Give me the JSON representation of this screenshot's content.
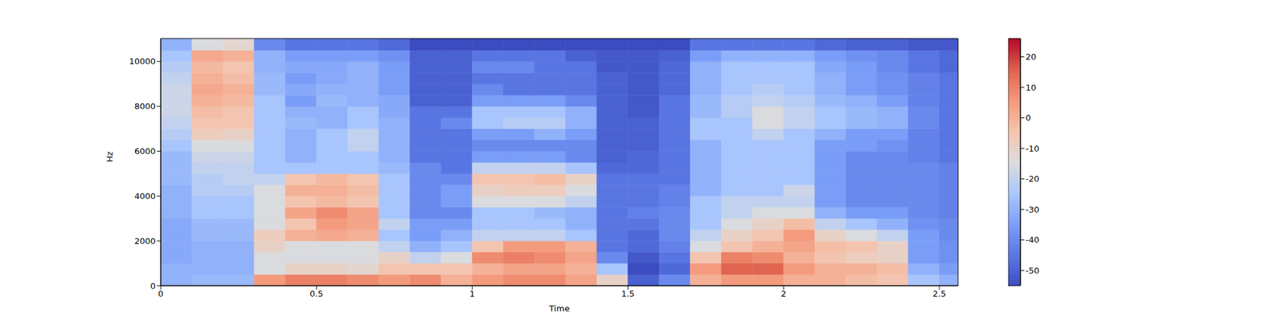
{
  "chart_data": {
    "type": "heatmap",
    "xlabel": "Time",
    "ylabel": "Hz",
    "xlim": [
      0,
      2.56
    ],
    "xticks": [
      0,
      0.5,
      1,
      1.5,
      2,
      2.5
    ],
    "ylim": [
      0,
      11025
    ],
    "yticks": [
      0,
      2000,
      4000,
      6000,
      8000,
      10000
    ],
    "x_bins": [
      0,
      0.1,
      0.2,
      0.3,
      0.4,
      0.5,
      0.6,
      0.7,
      0.8,
      0.9,
      1.0,
      1.1,
      1.2,
      1.3,
      1.4,
      1.5,
      1.6,
      1.7,
      1.8,
      1.9,
      2.0,
      2.1,
      2.2,
      2.3,
      2.4,
      2.5,
      2.56
    ],
    "y_bins": [
      0,
      500,
      1000,
      1500,
      2000,
      2500,
      3000,
      3500,
      4000,
      4500,
      5000,
      5500,
      6000,
      6500,
      7000,
      7500,
      8000,
      8500,
      9000,
      9500,
      10000,
      10500,
      11025
    ],
    "cells": [
      [
        -30,
        -30,
        -32,
        -32,
        -32,
        -32,
        -30,
        -30,
        -30,
        -28,
        -28,
        -28,
        -25,
        -22,
        -20,
        -18,
        -18,
        -18,
        -20,
        -22,
        -25,
        -30
      ],
      [
        -28,
        -30,
        -30,
        -30,
        -28,
        -28,
        -25,
        -25,
        -22,
        -22,
        -20,
        -18,
        -15,
        -8,
        -5,
        -3,
        0,
        2,
        0,
        -2,
        2,
        -15
      ],
      [
        -28,
        -30,
        -30,
        -30,
        -28,
        -28,
        -25,
        -25,
        -22,
        -20,
        -20,
        -18,
        -15,
        -10,
        -5,
        -5,
        -2,
        0,
        -3,
        -5,
        0,
        -12
      ],
      [
        5,
        -15,
        -15,
        -10,
        -8,
        -15,
        -15,
        -15,
        -15,
        -20,
        -25,
        -25,
        -25,
        -25,
        -25,
        -25,
        -25,
        -28,
        -28,
        -30,
        -30,
        -40
      ],
      [
        10,
        -10,
        -15,
        -15,
        0,
        -5,
        3,
        -5,
        0,
        -5,
        -25,
        -30,
        -30,
        -30,
        -28,
        -30,
        -35,
        -32,
        -35,
        -32,
        -35,
        -45
      ],
      [
        10,
        -10,
        -15,
        -15,
        2,
        5,
        8,
        -2,
        0,
        -2,
        -25,
        -25,
        -25,
        -25,
        -30,
        -30,
        -28,
        -30,
        -32,
        -32,
        -35,
        -45
      ],
      [
        8,
        -12,
        -15,
        -15,
        0,
        3,
        3,
        -5,
        -3,
        -5,
        -25,
        -25,
        -20,
        -20,
        -25,
        -25,
        -30,
        -30,
        -30,
        -30,
        -35,
        -45
      ],
      [
        5,
        -5,
        -10,
        -20,
        -25,
        -20,
        -25,
        -25,
        -25,
        -25,
        -28,
        -30,
        -30,
        -30,
        -30,
        -32,
        -32,
        -35,
        -35,
        -35,
        -38,
        -48
      ],
      [
        8,
        -5,
        -20,
        -30,
        -35,
        -35,
        -40,
        -40,
        -40,
        -40,
        -40,
        -45,
        -45,
        -45,
        -45,
        -45,
        -50,
        -50,
        -50,
        -50,
        -50,
        -55
      ],
      [
        0,
        -5,
        -15,
        -25,
        -30,
        -35,
        -40,
        -35,
        -35,
        -40,
        -45,
        -45,
        -45,
        -45,
        -40,
        -45,
        -50,
        -50,
        -50,
        -50,
        -50,
        -55
      ],
      [
        5,
        0,
        8,
        -5,
        -20,
        -25,
        -25,
        -15,
        -10,
        -5,
        -20,
        -35,
        -40,
        -35,
        -25,
        -25,
        -35,
        -40,
        -45,
        -40,
        -45,
        -55
      ],
      [
        8,
        3,
        10,
        5,
        -20,
        -25,
        -25,
        -15,
        -8,
        -5,
        -20,
        -35,
        -40,
        -35,
        -22,
        -25,
        -35,
        -45,
        -45,
        -40,
        -45,
        -55
      ],
      [
        8,
        3,
        8,
        5,
        -20,
        -25,
        -28,
        -15,
        -8,
        -3,
        -20,
        -35,
        -40,
        -30,
        -22,
        -25,
        -35,
        -45,
        -45,
        -45,
        -45,
        -55
      ],
      [
        3,
        0,
        3,
        0,
        -25,
        -30,
        -30,
        -20,
        -15,
        -10,
        -25,
        -40,
        -40,
        -35,
        -30,
        -30,
        -40,
        -45,
        -45,
        -45,
        -50,
        -55
      ],
      [
        -10,
        -25,
        -40,
        -45,
        -45,
        -45,
        -45,
        -45,
        -45,
        -45,
        -48,
        -50,
        -50,
        -50,
        -50,
        -50,
        -50,
        -50,
        -50,
        -52,
        -52,
        -55
      ],
      [
        -50,
        -55,
        -52,
        -48,
        -48,
        -45,
        -42,
        -45,
        -45,
        -45,
        -48,
        -48,
        -50,
        -50,
        -50,
        -52,
        -52,
        -52,
        -52,
        -52,
        -52,
        -55
      ],
      [
        -40,
        -48,
        -45,
        -42,
        -40,
        -40,
        -40,
        -42,
        -42,
        -45,
        -45,
        -45,
        -45,
        -45,
        -45,
        -45,
        -45,
        -48,
        -48,
        -48,
        -50,
        -55
      ],
      [
        0,
        5,
        -5,
        -15,
        -20,
        -25,
        -25,
        -25,
        -30,
        -30,
        -30,
        -30,
        -30,
        -25,
        -25,
        -28,
        -28,
        -30,
        -30,
        -30,
        -35,
        -45
      ],
      [
        5,
        15,
        10,
        -5,
        -10,
        -15,
        -20,
        -20,
        -25,
        -25,
        -25,
        -25,
        -25,
        -25,
        -25,
        -22,
        -22,
        -25,
        -25,
        -25,
        -30,
        -45
      ],
      [
        5,
        15,
        8,
        0,
        -5,
        -10,
        -15,
        -20,
        -25,
        -25,
        -25,
        -25,
        -25,
        -20,
        -15,
        -15,
        -20,
        -22,
        -25,
        -25,
        -30,
        -45
      ],
      [
        0,
        5,
        0,
        3,
        5,
        -3,
        -15,
        -20,
        -18,
        -25,
        -25,
        -25,
        -25,
        -25,
        -20,
        -20,
        -22,
        -25,
        -25,
        -25,
        -30,
        -45
      ],
      [
        0,
        0,
        -5,
        -3,
        -10,
        -20,
        -30,
        -35,
        -35,
        -35,
        -35,
        -35,
        -35,
        -30,
        -25,
        -25,
        -28,
        -30,
        -30,
        -32,
        -35,
        -48
      ],
      [
        -3,
        0,
        -8,
        -5,
        -15,
        -25,
        -35,
        -40,
        -40,
        -40,
        -40,
        -40,
        -35,
        -35,
        -28,
        -28,
        -30,
        -35,
        -35,
        -35,
        -38,
        -50
      ],
      [
        -5,
        -3,
        -10,
        -10,
        -20,
        -30,
        -35,
        -40,
        -40,
        -40,
        -40,
        -40,
        -38,
        -35,
        -30,
        -30,
        -35,
        -38,
        -38,
        -40,
        -40,
        -50
      ],
      [
        -25,
        -30,
        -35,
        -35,
        -35,
        -38,
        -40,
        -40,
        -40,
        -40,
        -40,
        -42,
        -42,
        -42,
        -40,
        -40,
        -42,
        -42,
        -42,
        -45,
        -45,
        -52
      ],
      [
        -30,
        -35,
        -38,
        -38,
        -40,
        -40,
        -42,
        -42,
        -42,
        -42,
        -42,
        -45,
        -45,
        -45,
        -45,
        -45,
        -45,
        -45,
        -45,
        -48,
        -48,
        -52
      ]
    ],
    "colorbar": {
      "range": [
        -55,
        26
      ],
      "ticks": [
        -50,
        -40,
        -30,
        -20,
        -10,
        0,
        10,
        20
      ]
    }
  }
}
